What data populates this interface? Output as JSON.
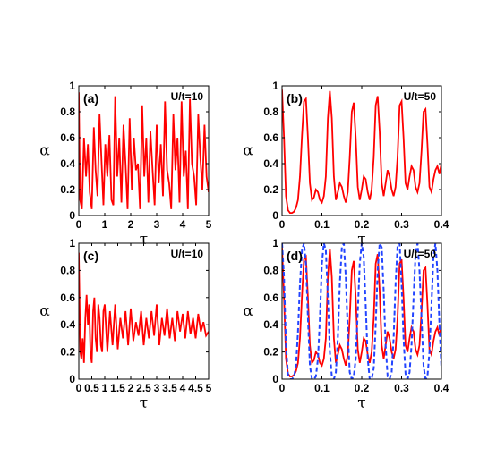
{
  "chart_data": [
    {
      "type": "line",
      "panel_label": "(a)",
      "annotation": "U/t=10",
      "xlabel": "τ",
      "ylabel": "α",
      "xlim": [
        0,
        5
      ],
      "ylim": [
        0,
        1
      ],
      "xticks": [
        "0",
        "1",
        "2",
        "3",
        "4",
        "5"
      ],
      "yticks": [
        "0",
        "0.2",
        "0.4",
        "0.6",
        "0.8",
        "1"
      ],
      "series": [
        {
          "color": "#ff0000",
          "style": "solid",
          "x": [
            0,
            0.05,
            0.12,
            0.2,
            0.28,
            0.35,
            0.42,
            0.5,
            0.58,
            0.65,
            0.72,
            0.8,
            0.88,
            0.95,
            1.02,
            1.1,
            1.18,
            1.26,
            1.33,
            1.4,
            1.48,
            1.56,
            1.64,
            1.72,
            1.8,
            1.88,
            1.96,
            2.04,
            2.12,
            2.2,
            2.28,
            2.36,
            2.44,
            2.52,
            2.6,
            2.68,
            2.76,
            2.84,
            2.92,
            3.0,
            3.08,
            3.16,
            3.24,
            3.32,
            3.4,
            3.48,
            3.56,
            3.64,
            3.72,
            3.8,
            3.88,
            3.96,
            4.04,
            4.12,
            4.2,
            4.28,
            4.36,
            4.44,
            4.52,
            4.6,
            4.68,
            4.76,
            4.84,
            4.92,
            5.0
          ],
          "y": [
            0.95,
            0.12,
            0.05,
            0.6,
            0.3,
            0.55,
            0.18,
            0.05,
            0.68,
            0.35,
            0.15,
            0.78,
            0.4,
            0.08,
            0.55,
            0.3,
            0.62,
            0.12,
            0.08,
            0.92,
            0.3,
            0.6,
            0.1,
            0.7,
            0.4,
            0.05,
            0.75,
            0.2,
            0.6,
            0.35,
            0.4,
            0.05,
            0.85,
            0.3,
            0.6,
            0.1,
            0.65,
            0.35,
            0.08,
            0.7,
            0.25,
            0.55,
            0.15,
            0.88,
            0.35,
            0.25,
            0.05,
            0.78,
            0.35,
            0.6,
            0.1,
            0.88,
            0.3,
            0.5,
            0.05,
            0.9,
            0.4,
            0.3,
            0.08,
            0.78,
            0.45,
            0.2,
            0.7,
            0.3,
            0.18
          ]
        }
      ]
    },
    {
      "type": "line",
      "panel_label": "(b)",
      "annotation": "U/t=50",
      "xlabel": "τ",
      "ylabel": "α",
      "xlim": [
        0,
        0.4
      ],
      "ylim": [
        0,
        1
      ],
      "xticks": [
        "0",
        "0.1",
        "0.2",
        "0.3",
        "0.4"
      ],
      "yticks": [
        "0",
        "0.2",
        "0.4",
        "0.6",
        "0.8",
        "1"
      ],
      "series": [
        {
          "color": "#ff0000",
          "style": "solid",
          "x": [
            0,
            0.005,
            0.01,
            0.015,
            0.02,
            0.025,
            0.03,
            0.035,
            0.04,
            0.045,
            0.05,
            0.055,
            0.06,
            0.065,
            0.07,
            0.075,
            0.08,
            0.085,
            0.09,
            0.095,
            0.1,
            0.105,
            0.11,
            0.115,
            0.12,
            0.125,
            0.13,
            0.135,
            0.14,
            0.145,
            0.15,
            0.155,
            0.16,
            0.165,
            0.17,
            0.175,
            0.18,
            0.185,
            0.19,
            0.195,
            0.2,
            0.205,
            0.21,
            0.215,
            0.22,
            0.225,
            0.23,
            0.235,
            0.24,
            0.245,
            0.25,
            0.255,
            0.26,
            0.265,
            0.27,
            0.275,
            0.28,
            0.285,
            0.29,
            0.295,
            0.3,
            0.305,
            0.31,
            0.315,
            0.32,
            0.325,
            0.33,
            0.335,
            0.34,
            0.345,
            0.35,
            0.355,
            0.36,
            0.365,
            0.37,
            0.375,
            0.38,
            0.385,
            0.39,
            0.395,
            0.4
          ],
          "y": [
            0.97,
            0.6,
            0.15,
            0.04,
            0.02,
            0.02,
            0.03,
            0.06,
            0.12,
            0.3,
            0.62,
            0.88,
            0.9,
            0.6,
            0.25,
            0.12,
            0.14,
            0.2,
            0.18,
            0.12,
            0.1,
            0.15,
            0.3,
            0.75,
            0.96,
            0.75,
            0.3,
            0.12,
            0.18,
            0.25,
            0.22,
            0.15,
            0.1,
            0.18,
            0.45,
            0.8,
            0.87,
            0.6,
            0.22,
            0.12,
            0.2,
            0.3,
            0.28,
            0.18,
            0.12,
            0.2,
            0.45,
            0.85,
            0.92,
            0.65,
            0.25,
            0.15,
            0.25,
            0.35,
            0.3,
            0.2,
            0.15,
            0.22,
            0.45,
            0.85,
            0.88,
            0.6,
            0.25,
            0.2,
            0.3,
            0.38,
            0.35,
            0.22,
            0.18,
            0.25,
            0.5,
            0.8,
            0.82,
            0.55,
            0.22,
            0.18,
            0.28,
            0.35,
            0.38,
            0.32,
            0.4
          ]
        }
      ]
    },
    {
      "type": "line",
      "panel_label": "(c)",
      "annotation": "U/t=10",
      "xlabel": "τ",
      "ylabel": "α",
      "xlim": [
        0,
        5
      ],
      "ylim": [
        0,
        1
      ],
      "xticks": [
        "0",
        "0.5",
        "1",
        "1.5",
        "2",
        "2.5",
        "3",
        "3.5",
        "4",
        "4.5",
        "5"
      ],
      "yticks": [
        "0",
        "0.2",
        "0.4",
        "0.6",
        "0.8",
        "1"
      ],
      "series": [
        {
          "color": "#ff0000",
          "style": "solid",
          "x": [
            0,
            0.03,
            0.06,
            0.1,
            0.15,
            0.2,
            0.25,
            0.3,
            0.35,
            0.4,
            0.45,
            0.5,
            0.55,
            0.6,
            0.65,
            0.7,
            0.75,
            0.8,
            0.85,
            0.9,
            0.95,
            1.0,
            1.1,
            1.2,
            1.3,
            1.4,
            1.5,
            1.6,
            1.7,
            1.8,
            1.9,
            2.0,
            2.1,
            2.2,
            2.3,
            2.4,
            2.5,
            2.6,
            2.7,
            2.8,
            2.9,
            3.0,
            3.1,
            3.2,
            3.3,
            3.4,
            3.5,
            3.6,
            3.7,
            3.8,
            3.9,
            4.0,
            4.1,
            4.2,
            4.3,
            4.4,
            4.5,
            4.6,
            4.7,
            4.8,
            4.9,
            5.0
          ],
          "y": [
            0.93,
            0.55,
            0.2,
            0.15,
            0.3,
            0.12,
            0.45,
            0.62,
            0.4,
            0.55,
            0.2,
            0.12,
            0.5,
            0.6,
            0.3,
            0.2,
            0.55,
            0.45,
            0.25,
            0.2,
            0.5,
            0.55,
            0.2,
            0.5,
            0.25,
            0.55,
            0.22,
            0.45,
            0.3,
            0.5,
            0.25,
            0.52,
            0.28,
            0.42,
            0.32,
            0.5,
            0.25,
            0.45,
            0.3,
            0.5,
            0.32,
            0.55,
            0.25,
            0.45,
            0.32,
            0.52,
            0.3,
            0.45,
            0.28,
            0.5,
            0.35,
            0.48,
            0.3,
            0.5,
            0.33,
            0.45,
            0.3,
            0.48,
            0.35,
            0.42,
            0.32,
            0.35
          ]
        }
      ]
    },
    {
      "type": "line",
      "panel_label": "(d)",
      "annotation": "U/t=50",
      "xlabel": "τ",
      "ylabel": "α",
      "xlim": [
        0,
        0.4
      ],
      "ylim": [
        0,
        1
      ],
      "xticks": [
        "0",
        "0.1",
        "0.2",
        "0.3",
        "0.4"
      ],
      "yticks": [
        "0",
        "0.2",
        "0.4",
        "0.6",
        "0.8",
        "1"
      ],
      "series": [
        {
          "color": "#ff0000",
          "style": "solid",
          "x": [
            0,
            0.005,
            0.01,
            0.015,
            0.02,
            0.025,
            0.03,
            0.035,
            0.04,
            0.045,
            0.05,
            0.055,
            0.06,
            0.065,
            0.07,
            0.075,
            0.08,
            0.085,
            0.09,
            0.095,
            0.1,
            0.105,
            0.11,
            0.115,
            0.12,
            0.125,
            0.13,
            0.135,
            0.14,
            0.145,
            0.15,
            0.155,
            0.16,
            0.165,
            0.17,
            0.175,
            0.18,
            0.185,
            0.19,
            0.195,
            0.2,
            0.205,
            0.21,
            0.215,
            0.22,
            0.225,
            0.23,
            0.235,
            0.24,
            0.245,
            0.25,
            0.255,
            0.26,
            0.265,
            0.27,
            0.275,
            0.28,
            0.285,
            0.29,
            0.295,
            0.3,
            0.305,
            0.31,
            0.315,
            0.32,
            0.325,
            0.33,
            0.335,
            0.34,
            0.345,
            0.35,
            0.355,
            0.36,
            0.365,
            0.37,
            0.375,
            0.38,
            0.385,
            0.39,
            0.395,
            0.4
          ],
          "y": [
            0.97,
            0.6,
            0.15,
            0.04,
            0.02,
            0.02,
            0.03,
            0.06,
            0.12,
            0.3,
            0.62,
            0.88,
            0.9,
            0.6,
            0.25,
            0.12,
            0.14,
            0.2,
            0.18,
            0.12,
            0.1,
            0.15,
            0.3,
            0.75,
            0.96,
            0.75,
            0.3,
            0.12,
            0.18,
            0.25,
            0.22,
            0.15,
            0.1,
            0.18,
            0.45,
            0.8,
            0.87,
            0.6,
            0.22,
            0.12,
            0.2,
            0.3,
            0.28,
            0.18,
            0.12,
            0.2,
            0.45,
            0.85,
            0.92,
            0.65,
            0.25,
            0.15,
            0.25,
            0.35,
            0.3,
            0.2,
            0.15,
            0.22,
            0.45,
            0.85,
            0.88,
            0.6,
            0.25,
            0.2,
            0.3,
            0.38,
            0.35,
            0.22,
            0.18,
            0.25,
            0.5,
            0.8,
            0.82,
            0.55,
            0.22,
            0.18,
            0.28,
            0.35,
            0.38,
            0.32,
            0.4
          ]
        },
        {
          "color": "#2244ff",
          "style": "dashed",
          "x": [
            0,
            0.005,
            0.01,
            0.015,
            0.02,
            0.025,
            0.03,
            0.035,
            0.04,
            0.045,
            0.05,
            0.055,
            0.06,
            0.065,
            0.07,
            0.075,
            0.08,
            0.085,
            0.09,
            0.095,
            0.1,
            0.105,
            0.11,
            0.115,
            0.12,
            0.125,
            0.13,
            0.135,
            0.14,
            0.145,
            0.15,
            0.155,
            0.16,
            0.165,
            0.17,
            0.175,
            0.18,
            0.185,
            0.19,
            0.195,
            0.2,
            0.205,
            0.21,
            0.215,
            0.22,
            0.225,
            0.23,
            0.235,
            0.24,
            0.245,
            0.25,
            0.255,
            0.26,
            0.265,
            0.27,
            0.275,
            0.28,
            0.285,
            0.29,
            0.295,
            0.3,
            0.305,
            0.31,
            0.315,
            0.32,
            0.325,
            0.33,
            0.335,
            0.34,
            0.345,
            0.35,
            0.355,
            0.36,
            0.365,
            0.37,
            0.375,
            0.38,
            0.385,
            0.39,
            0.395,
            0.4
          ],
          "y": [
            1.0,
            0.75,
            0.25,
            0.03,
            0.0,
            0.0,
            0.02,
            0.1,
            0.35,
            0.7,
            0.95,
            1.0,
            0.85,
            0.45,
            0.1,
            0.0,
            0.0,
            0.02,
            0.15,
            0.45,
            0.85,
            1.0,
            0.95,
            0.6,
            0.2,
            0.02,
            0.0,
            0.05,
            0.3,
            0.7,
            0.97,
            1.0,
            0.75,
            0.35,
            0.05,
            0.0,
            0.02,
            0.15,
            0.5,
            0.85,
            1.0,
            0.9,
            0.55,
            0.15,
            0.0,
            0.0,
            0.08,
            0.4,
            0.8,
            1.0,
            0.97,
            0.65,
            0.25,
            0.02,
            0.0,
            0.05,
            0.3,
            0.7,
            0.98,
            1.0,
            0.7,
            0.3,
            0.04,
            0.0,
            0.05,
            0.25,
            0.6,
            0.92,
            1.0,
            0.8,
            0.45,
            0.1,
            0.0,
            0.02,
            0.2,
            0.55,
            0.9,
            1.0,
            0.8,
            0.4,
            0.08
          ]
        }
      ]
    }
  ]
}
